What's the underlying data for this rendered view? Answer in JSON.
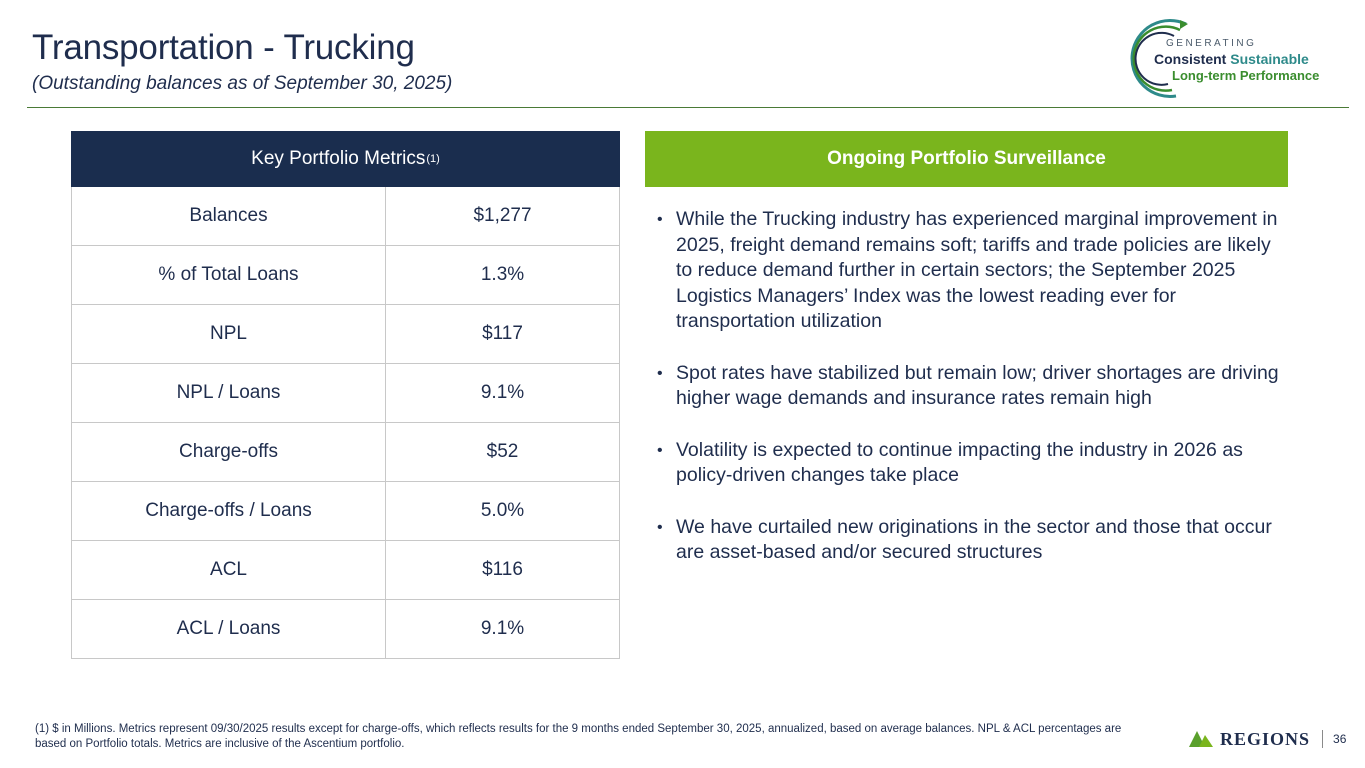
{
  "header": {
    "title": "Transportation - Trucking",
    "subtitle": "(Outstanding balances as of September 30, 2025)"
  },
  "logo": {
    "generating": "GENERATING",
    "consistent": "Consistent",
    "sustainable": "Sustainable",
    "long_term": "Long-term Performance"
  },
  "metrics": {
    "heading": "Key Portfolio Metrics",
    "heading_note": "(1)",
    "rows": [
      {
        "label": "Balances",
        "value": "$1,277"
      },
      {
        "label": "% of Total Loans",
        "value": "1.3%"
      },
      {
        "label": "NPL",
        "value": "$117"
      },
      {
        "label": "NPL / Loans",
        "value": "9.1%"
      },
      {
        "label": "Charge-offs",
        "value": "$52"
      },
      {
        "label": "Charge-offs / Loans",
        "value": "5.0%"
      },
      {
        "label": "ACL",
        "value": "$116"
      },
      {
        "label": "ACL / Loans",
        "value": "9.1%"
      }
    ]
  },
  "surveillance": {
    "heading": "Ongoing Portfolio Surveillance",
    "bullet_char": "•",
    "bullets": [
      "While the Trucking industry has experienced marginal improvement in 2025, freight demand remains soft; tariffs and trade policies are likely to reduce demand further in certain sectors; the September 2025 Logistics Managers’ Index was the lowest reading ever for transportation utilization",
      "Spot rates have stabilized but remain low; driver shortages are driving higher wage demands and insurance rates remain high",
      "Volatility is expected to continue impacting the industry in 2026 as policy-driven changes take place",
      "We have curtailed new originations in the sector and those that occur are asset-based and/or secured structures"
    ]
  },
  "footer": {
    "footnote": "(1) $ in Millions. Metrics represent 09/30/2025 results except for charge-offs, which reflects results for the 9 months ended September 30, 2025, annualized, based on average balances. NPL & ACL percentages are based on Portfolio totals. Metrics are inclusive of the Ascentium portfolio.",
    "brand": "REGIONS",
    "page_number": "36"
  },
  "colors": {
    "navy": "#1a2d4e",
    "green_header": "#7ab51d",
    "rule_green": "#4a7a36"
  }
}
